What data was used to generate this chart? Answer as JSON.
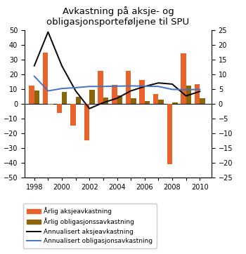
{
  "years": [
    1998,
    1999,
    2000,
    2001,
    2002,
    2003,
    2004,
    2005,
    2006,
    2007,
    2008,
    2009,
    2010
  ],
  "annual_equity": [
    12.5,
    34.8,
    -5.8,
    -14.6,
    -24.4,
    22.8,
    13.0,
    22.5,
    16.5,
    6.8,
    -40.7,
    34.3,
    13.3
  ],
  "annual_bond": [
    9.1,
    -0.3,
    8.1,
    5.0,
    9.9,
    4.5,
    6.1,
    3.8,
    1.9,
    3.0,
    1.0,
    12.5,
    4.1
  ],
  "annualized_equity": [
    13.0,
    24.5,
    13.0,
    4.5,
    -1.5,
    0.5,
    2.0,
    4.5,
    6.0,
    7.2,
    6.8,
    2.8,
    4.3
  ],
  "annualized_bond": [
    9.5,
    4.5,
    5.3,
    5.6,
    6.0,
    6.0,
    6.1,
    6.2,
    6.1,
    6.0,
    5.0,
    4.9,
    5.0
  ],
  "title": "Avkastning på aksje- og\nobligasjonsporteføljene til SPU",
  "ylim_left": [
    -50,
    50
  ],
  "ylim_right": [
    -25,
    25
  ],
  "yticks_left": [
    -50,
    -40,
    -30,
    -20,
    -10,
    0,
    10,
    20,
    30,
    40,
    50
  ],
  "yticks_right": [
    -25,
    -20,
    -15,
    -10,
    -5,
    0,
    5,
    10,
    15,
    20,
    25
  ],
  "bar_width": 0.38,
  "color_equity": "#E8622A",
  "color_bond": "#8B6508",
  "color_line_equity": "#000000",
  "color_line_bond": "#4472C4",
  "legend_labels": [
    "Årlig aksjeavkastning",
    "Årlig obligasjonssavkastning",
    "Annualisert aksjeavkastning",
    "Annualisert obligasjonsavkastning"
  ]
}
